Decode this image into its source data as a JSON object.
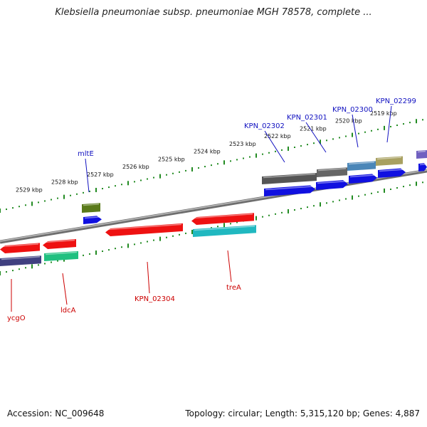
{
  "title": "Klebsiella pneumoniae subsp. pneumoniae MGH 78578, complete ...",
  "accession": "Accession: NC_009648",
  "summary": "Topology: circular; Length: 5,315,120 bp; Genes: 4,887",
  "tick_labels": [
    "2529 kbp",
    "2528 kbp",
    "2527 kbp",
    "2526 kbp",
    "2525 kbp",
    "2524 kbp",
    "2523 kbp",
    "2522 kbp",
    "2521 kbp",
    "2520 kbp",
    "2519 kbp"
  ],
  "forward_gene_labels": [
    "mltE",
    "KPN_02302",
    "KPN_02301",
    "KPN_02300",
    "KPN_02299"
  ],
  "reverse_gene_labels": [
    "ycgO",
    "ldcA",
    "KPN_02304",
    "treA"
  ],
  "colors": {
    "backbone": "#8a8a8a",
    "tick": "#228b22",
    "forward_cds": "#1010e0",
    "reverse_cds": "#ee1111",
    "forward_label": "#1010c0",
    "reverse_label": "#cc0000"
  },
  "feature_colors": {
    "mltE": "#5a7a1a",
    "KPN_02302": "#555555",
    "KPN_02301": "#666666",
    "KPN_02300": "#4a86b8",
    "KPN_02299": "#a8a060",
    "edge_forward": "#7060c0",
    "ycgO": "#404080",
    "ldcA": "#20c080",
    "treA": "#20b8c0"
  }
}
